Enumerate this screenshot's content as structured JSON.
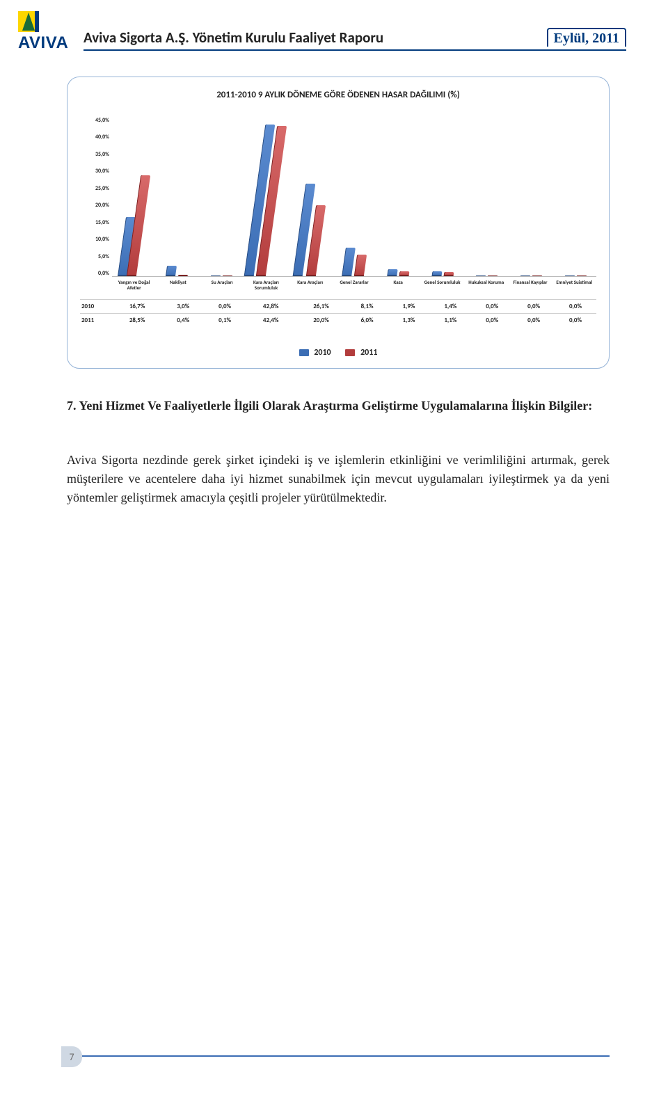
{
  "header": {
    "brand": "AVIVA",
    "title": "Aviva Sigorta A.Ş. Yönetim Kurulu Faaliyet Raporu",
    "date": "Eylül, 2011"
  },
  "chart": {
    "type": "bar",
    "title": "2011-2010 9 AYLIK DÖNEME GÖRE ÖDENEN HASAR DAĞILIMI (%)",
    "ylim_label": "45,0%",
    "ylim": 45,
    "yticks": [
      "0,0%",
      "5,0%",
      "10,0%",
      "15,0%",
      "20,0%",
      "25,0%",
      "30,0%",
      "35,0%",
      "40,0%",
      "45,0%"
    ],
    "categories": [
      "Yangın ve Doğal Afetler",
      "Nakliyat",
      "Su Araçları",
      "Kara Araçları Sorumluluk",
      "Kara Araçları",
      "Genel Zararlar",
      "Kaza",
      "Genel Sorumluluk",
      "Hukuksal Koruma",
      "Finansal Kayıplar",
      "Emniyet Suistimal"
    ],
    "series": [
      {
        "name": "2010",
        "values": [
          16.7,
          3.0,
          0.0,
          42.8,
          26.1,
          8.1,
          1.9,
          1.4,
          0.0,
          0.0,
          0.0
        ],
        "labels": [
          "16,7%",
          "3,0%",
          "0,0%",
          "42,8%",
          "26,1%",
          "8,1%",
          "1,9%",
          "1,4%",
          "0,0%",
          "0,0%",
          "0,0%"
        ],
        "color": "#3b6db4"
      },
      {
        "name": "2011",
        "values": [
          28.5,
          0.4,
          0.1,
          42.4,
          20.0,
          6.0,
          1.3,
          1.1,
          0.0,
          0.0,
          0.0
        ],
        "labels": [
          "28,5%",
          "0,4%",
          "0,1%",
          "42,4%",
          "20,0%",
          "6,0%",
          "1,3%",
          "1,1%",
          "0,0%",
          "0,0%",
          "0,0%"
        ],
        "color": "#b23c3c"
      }
    ],
    "legend": [
      "2010",
      "2011"
    ]
  },
  "body": {
    "heading": "7. Yeni Hizmet Ve Faaliyetlerle İlgili Olarak Araştırma Geliştirme Uygulamalarına İlişkin Bilgiler:",
    "paragraph": "Aviva Sigorta nezdinde gerek şirket içindeki iş ve işlemlerin etkinliğini ve verimliliğini artırmak, gerek müşterilere ve acentelere daha iyi hizmet sunabilmek için mevcut uygulamaları iyileştirmek ya da yeni yöntemler geliştirmek amacıyla çeşitli projeler yürütülmektedir."
  },
  "footer": {
    "page": "7"
  }
}
